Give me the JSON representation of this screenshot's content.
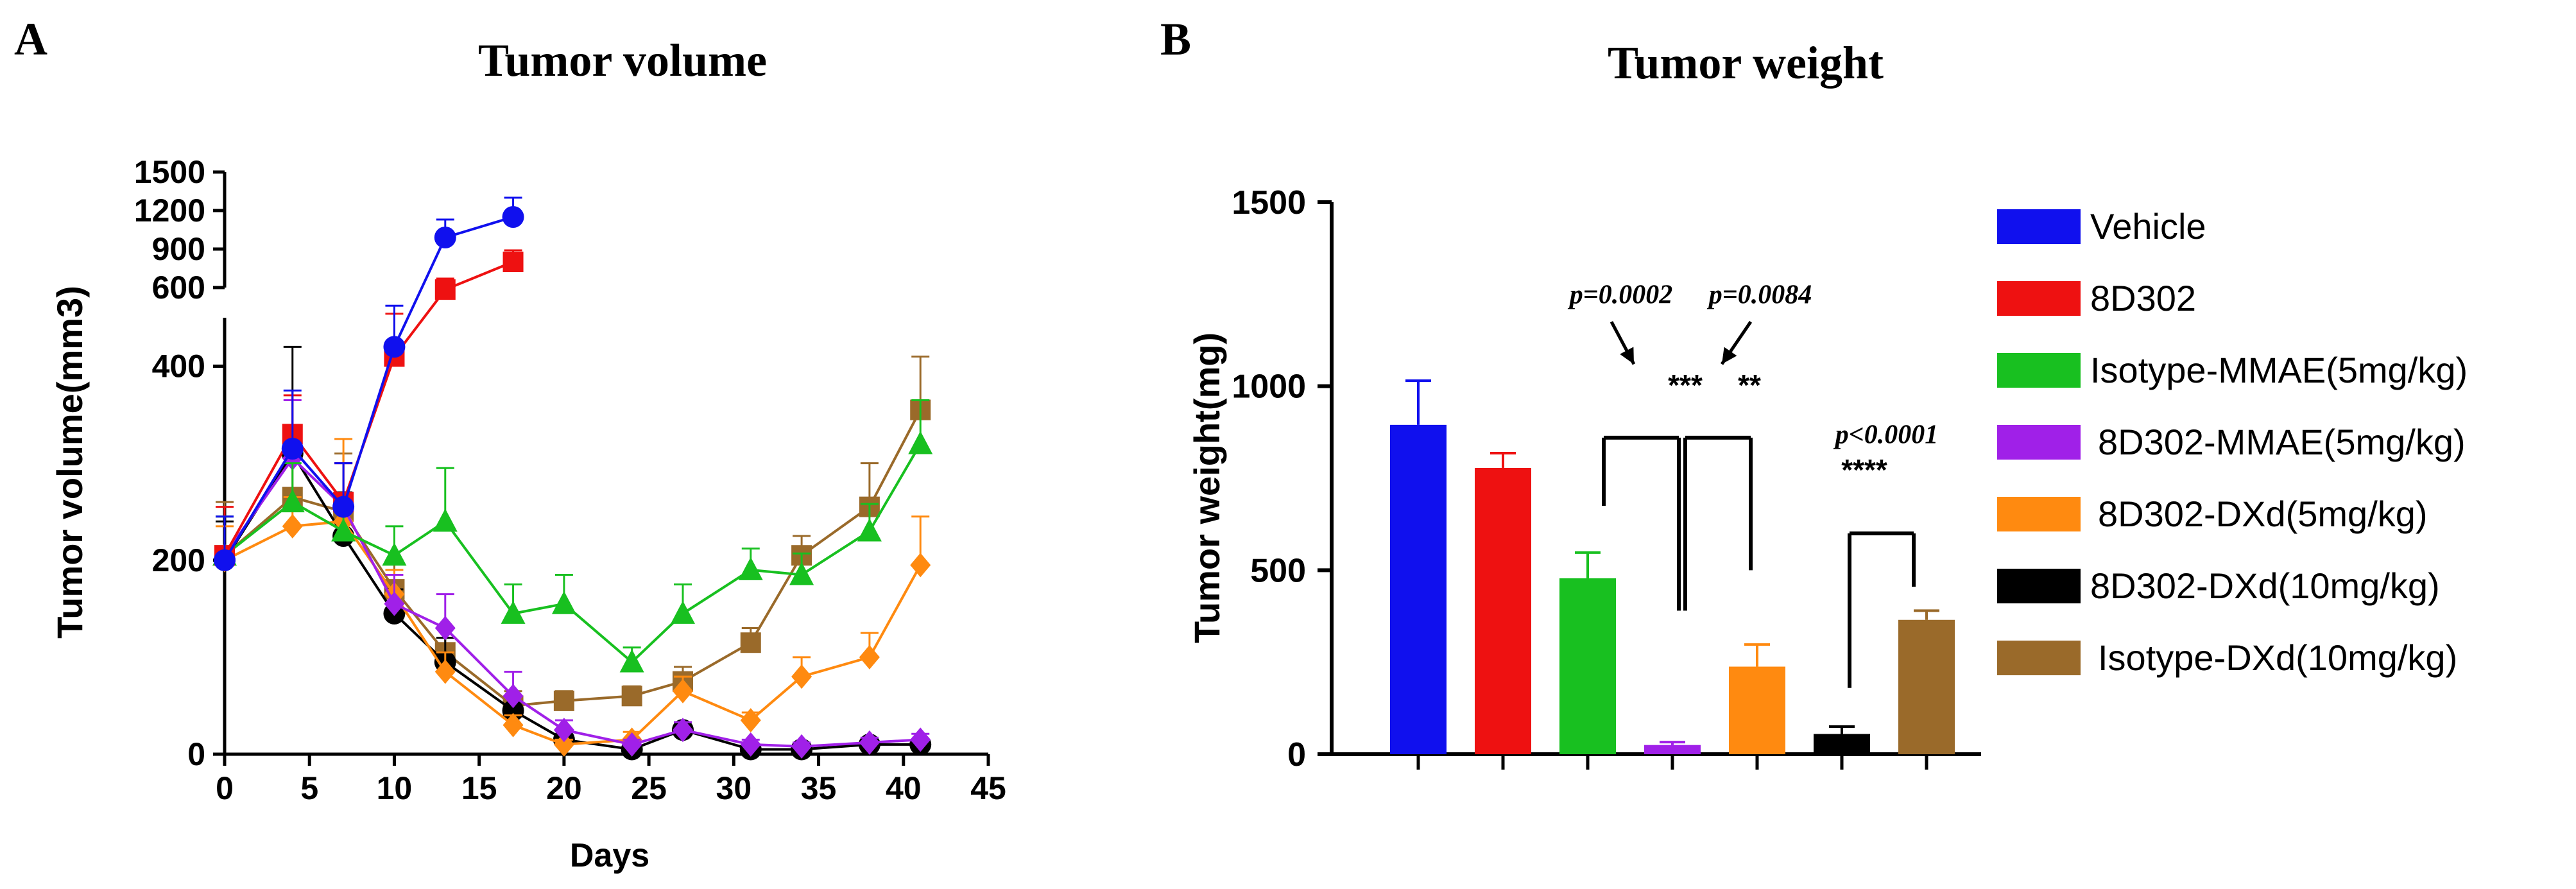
{
  "panels": [
    {
      "letter": "A",
      "title": "Tumor volume"
    },
    {
      "letter": "B",
      "title": "Tumor weight"
    }
  ],
  "colors": {
    "Vehicle": "#1010ee",
    "8D302": "#ee1111",
    "Isotype-MMAE(5mg/kg)": "#18c020",
    "8D302-MMAE(5mg/kg)": "#a020e8",
    "8D302-DXd(5mg/kg)": "#ff8a10",
    "8D302-DXd(10mg/kg)": "#000000",
    "Isotype-DXd(10mg/kg)": "#9a6a2a"
  },
  "markers": {
    "Vehicle": "circle",
    "8D302": "square",
    "Isotype-MMAE(5mg/kg)": "triangle",
    "8D302-MMAE(5mg/kg)": "diamond",
    "8D302-DXd(5mg/kg)": "diamond",
    "8D302-DXd(10mg/kg)": "circle",
    "Isotype-DXd(10mg/kg)": "square"
  },
  "chart_data": [
    {
      "type": "line",
      "title": "Tumor volume",
      "xlabel": "Days",
      "ylabel": "Tumor volume(mm3)",
      "xlim": [
        0,
        45
      ],
      "x_ticks": [
        "0",
        "5",
        "10",
        "15",
        "20",
        "25",
        "30",
        "35",
        "40",
        "45"
      ],
      "ylim": [
        0,
        1500
      ],
      "y_axis_break": {
        "lower": [
          0,
          450
        ],
        "upper": [
          600,
          1500
        ]
      },
      "y_ticks_lower": [
        "0",
        "200",
        "400"
      ],
      "y_ticks_upper": [
        "600",
        "900",
        "1200",
        "1500"
      ],
      "grid": false,
      "series": [
        {
          "name": "Vehicle",
          "x": [
            0,
            4,
            7,
            10,
            13,
            17
          ],
          "y": [
            200,
            315,
            255,
            420,
            990,
            1150
          ],
          "err": [
            45,
            60,
            45,
            90,
            140,
            150
          ]
        },
        {
          "name": "8D302",
          "x": [
            0,
            4,
            7,
            10,
            13,
            17
          ],
          "y": [
            205,
            330,
            260,
            410,
            590,
            800
          ],
          "err": [
            50,
            40,
            40,
            60,
            80,
            90
          ]
        },
        {
          "name": "Isotype-MMAE(5mg/kg)",
          "x": [
            0,
            4,
            7,
            10,
            13,
            17,
            20,
            24,
            27,
            31,
            34,
            38,
            41
          ],
          "y": [
            205,
            260,
            230,
            205,
            240,
            145,
            155,
            95,
            145,
            190,
            185,
            230,
            320
          ],
          "err": [
            40,
            40,
            35,
            30,
            55,
            30,
            30,
            15,
            30,
            22,
            22,
            28,
            45
          ]
        },
        {
          "name": "8D302-MMAE(5mg/kg)",
          "x": [
            0,
            4,
            7,
            10,
            13,
            17,
            20,
            24,
            27,
            31,
            34,
            38,
            41
          ],
          "y": [
            205,
            305,
            255,
            155,
            130,
            60,
            25,
            10,
            25,
            10,
            8,
            12,
            15
          ],
          "err": [
            40,
            60,
            45,
            30,
            35,
            25,
            10,
            5,
            8,
            5,
            4,
            5,
            6
          ]
        },
        {
          "name": "8D302-DXd(5mg/kg)",
          "x": [
            0,
            4,
            7,
            10,
            13,
            17,
            20,
            24,
            27,
            31,
            34,
            38,
            41
          ],
          "y": [
            200,
            235,
            240,
            165,
            85,
            30,
            10,
            15,
            65,
            35,
            80,
            100,
            195
          ],
          "err": [
            35,
            30,
            85,
            25,
            20,
            10,
            5,
            8,
            15,
            8,
            20,
            25,
            50
          ]
        },
        {
          "name": "8D302-DXd(10mg/kg)",
          "x": [
            0,
            4,
            7,
            10,
            13,
            17,
            20,
            24,
            27,
            31,
            34,
            38,
            41
          ],
          "y": [
            200,
            310,
            225,
            145,
            95,
            45,
            15,
            5,
            25,
            5,
            5,
            10,
            10
          ],
          "err": [
            40,
            110,
            45,
            25,
            25,
            15,
            5,
            3,
            8,
            3,
            3,
            4,
            4
          ]
        },
        {
          "name": "Isotype-DXd(10mg/kg)",
          "x": [
            0,
            4,
            7,
            10,
            13,
            17,
            20,
            24,
            27,
            31,
            34,
            38,
            41
          ],
          "y": [
            205,
            265,
            250,
            170,
            105,
            50,
            55,
            60,
            75,
            115,
            205,
            255,
            355
          ],
          "err": [
            55,
            50,
            60,
            30,
            25,
            15,
            10,
            10,
            15,
            15,
            20,
            45,
            55
          ]
        }
      ]
    },
    {
      "type": "bar",
      "title": "Tumor weight",
      "xlabel": "",
      "ylabel": "Tumor weight(mg)",
      "ylim": [
        0,
        1500
      ],
      "y_ticks": [
        "0",
        "500",
        "1000",
        "1500"
      ],
      "grid": false,
      "legend_placement": "right",
      "categories": [
        "Vehicle",
        "8D302",
        "Isotype-MMAE(5mg/kg)",
        "8D302-MMAE(5mg/kg)",
        "8D302-DXd(5mg/kg)",
        "8D302-DXd(10mg/kg)",
        "Isotype-DXd(10mg/kg)"
      ],
      "values": [
        895,
        778,
        478,
        25,
        238,
        55,
        365
      ],
      "errors": [
        120,
        40,
        70,
        8,
        60,
        20,
        25
      ],
      "annotations": [
        {
          "p": "p=0.0002",
          "stars": "***"
        },
        {
          "p": "p=0.0084",
          "stars": "**"
        },
        {
          "p": "p<0.0001",
          "stars": "****"
        }
      ]
    }
  ]
}
